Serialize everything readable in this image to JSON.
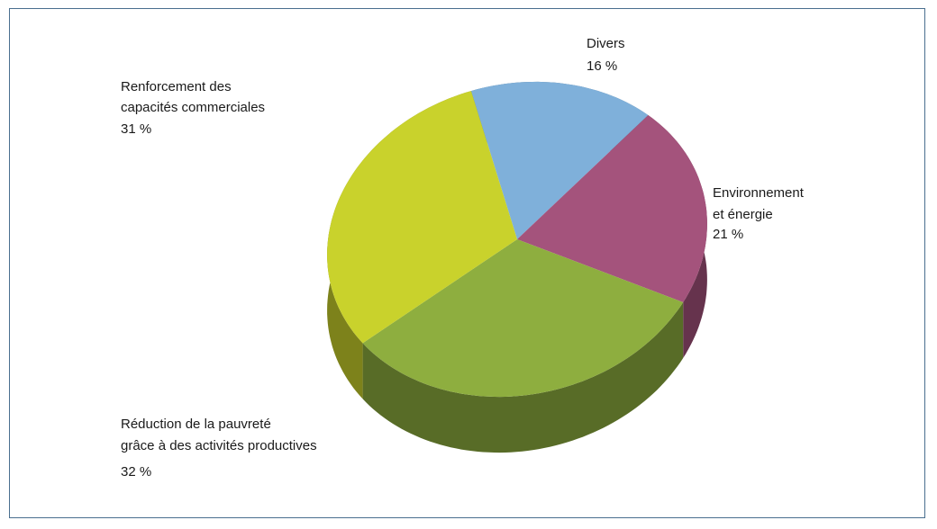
{
  "chart_data": {
    "type": "pie",
    "title": "",
    "slices": [
      {
        "label_lines": [
          "Divers"
        ],
        "value": 16,
        "value_label": "16 %",
        "color": "#7fb0da"
      },
      {
        "label_lines": [
          "Environnement",
          "et énergie"
        ],
        "value": 21,
        "value_label": "21 %",
        "color": "#a4537c"
      },
      {
        "label_lines": [
          "Réduction de la pauvreté",
          "grâce à des activités productives"
        ],
        "value": 32,
        "value_label": "32 %",
        "color": "#8eae3f"
      },
      {
        "label_lines": [
          "Renforcement des",
          "capacités commerciales"
        ],
        "value": 31,
        "value_label": "31 %",
        "color": "#c9d22c"
      }
    ],
    "legend": "none",
    "style": "3d-tilted"
  }
}
